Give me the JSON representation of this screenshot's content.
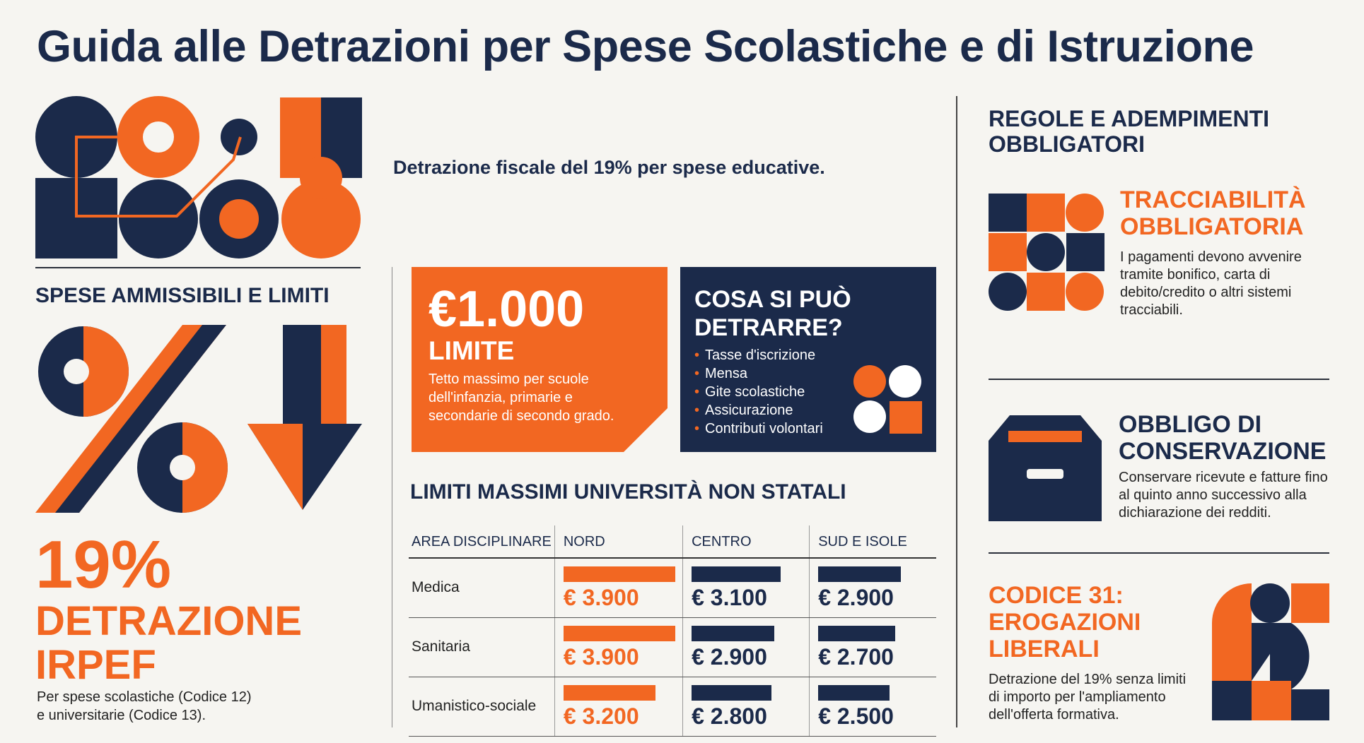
{
  "title": "Guida alle Detrazioni per Spese Scolastiche e di Istruzione",
  "colors": {
    "navy": "#1b2a4a",
    "orange": "#f26722",
    "background": "#f6f5f1"
  },
  "left": {
    "section_heading": "SPESE AMMISSIBILI E LIMITI",
    "big_percent": "19%",
    "big_label_line1": "DETRAZIONE",
    "big_label_line2": "IRPEF",
    "note_line1": "Per spese scolastiche (Codice 12)",
    "note_line2": "e universitarie (Codice 13)."
  },
  "middle": {
    "intro": "Detrazione fiscale del 19% per spese educative.",
    "limit_card": {
      "amount": "€1.000",
      "label": "LIMITE",
      "description": "Tetto massimo per scuole dell'infanzia, primarie e secondarie di secondo grado."
    },
    "what_card": {
      "heading_line1": "COSA SI PUÒ",
      "heading_line2": "DETRARRE?",
      "items": [
        "Tasse d'iscrizione",
        "Mensa",
        "Gite scolastiche",
        "Assicurazione",
        "Contributi volontari"
      ]
    },
    "table": {
      "title": "LIMITI MASSIMI UNIVERSITÀ NON STATALI",
      "headers": [
        "AREA DISCIPLINARE",
        "NORD",
        "CENTRO",
        "SUD E ISOLE"
      ],
      "rows": [
        {
          "area": "Medica",
          "nord": "€ 3.900",
          "centro": "€ 3.100",
          "sud": "€ 2.900"
        },
        {
          "area": "Sanitaria",
          "nord": "€ 3.900",
          "centro": "€ 2.900",
          "sud": "€ 2.700"
        },
        {
          "area": "Umanistico-sociale",
          "nord": "€ 3.200",
          "centro": "€ 2.800",
          "sud": "€ 2.500"
        }
      ],
      "values_numeric": [
        [
          3900,
          3100,
          2900
        ],
        [
          3900,
          2900,
          2700
        ],
        [
          3200,
          2800,
          2500
        ]
      ]
    }
  },
  "right": {
    "title_line1": "REGOLE E ADEMPIMENTI",
    "title_line2": "OBBLIGATORI",
    "block1": {
      "heading_line1": "TRACCIABILITÀ",
      "heading_line2": "OBBLIGATORIA",
      "text": "I pagamenti devono avvenire tramite bonifico, carta di debito/credito o altri sistemi tracciabili."
    },
    "block2": {
      "heading_line1": "OBBLIGO DI",
      "heading_line2": "CONSERVAZIONE",
      "text": "Conservare ricevute e fatture fino al quinto anno successivo alla dichiarazione dei redditi."
    },
    "block3": {
      "heading_line1": "CODICE 31:",
      "heading_line2": "EROGAZIONI",
      "heading_line3": "LIBERALI",
      "text": "Detrazione del 19% senza limiti di importo per l'ampliamento dell'offerta formativa."
    }
  }
}
